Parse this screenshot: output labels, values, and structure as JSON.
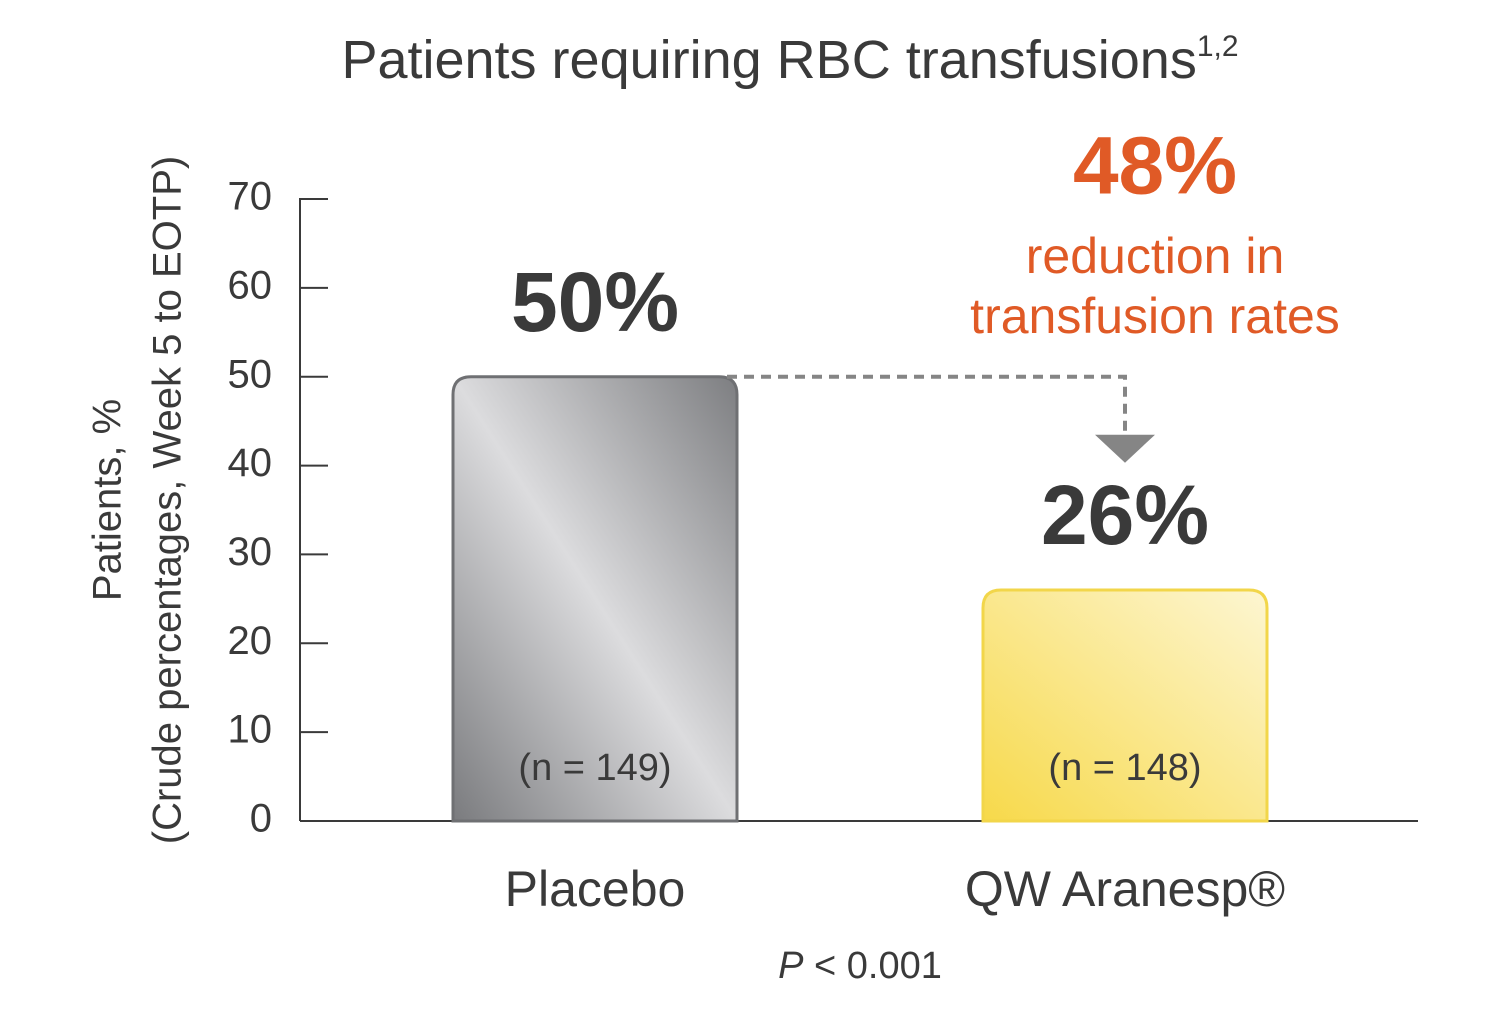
{
  "chart_data": {
    "type": "bar",
    "title": "Patients requiring RBC transfusions",
    "title_superscript": "1,2",
    "y_label": [
      "Patients, %",
      "(Crude percentages, Week 5 to EOTP)"
    ],
    "categories": [
      "Placebo",
      "QW Aranesp®"
    ],
    "values": [
      50,
      26
    ],
    "value_labels": [
      "50%",
      "26%"
    ],
    "n_labels": [
      "(n = 149)",
      "(n = 148)"
    ],
    "colors": [
      "#a8a9ab",
      "#f7de5c"
    ],
    "ylim": [
      0,
      70
    ],
    "yticks": [
      0,
      10,
      20,
      30,
      40,
      50,
      60,
      70
    ],
    "annotation": {
      "value": "48%",
      "text": [
        "reduction in",
        "transfusion rates"
      ],
      "color": "#e05a26"
    },
    "p_value": {
      "symbol": "P",
      "text": "< 0.001"
    }
  }
}
